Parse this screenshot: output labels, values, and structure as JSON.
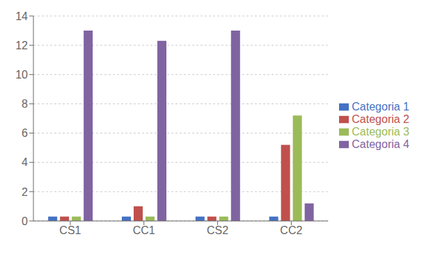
{
  "chart_data": {
    "type": "bar",
    "categories": [
      "CS1",
      "CC1",
      "CS2",
      "CC2"
    ],
    "series": [
      {
        "name": "Categoria 1",
        "color": "#4472C4",
        "values": [
          0.3,
          0.3,
          0.3,
          0.3
        ]
      },
      {
        "name": "Categoria 2",
        "color": "#C0504D",
        "values": [
          0.3,
          1.0,
          0.3,
          5.2
        ]
      },
      {
        "name": "Categoria 3",
        "color": "#9BBB59",
        "values": [
          0.3,
          0.3,
          0.3,
          7.2
        ]
      },
      {
        "name": "Categoria 4",
        "color": "#8064A2",
        "values": [
          13.0,
          12.3,
          13.0,
          1.2
        ]
      }
    ],
    "ylim": [
      0,
      14
    ],
    "yticks": [
      0,
      2,
      4,
      6,
      8,
      10,
      12,
      14
    ],
    "grid": true,
    "legend": "right"
  }
}
